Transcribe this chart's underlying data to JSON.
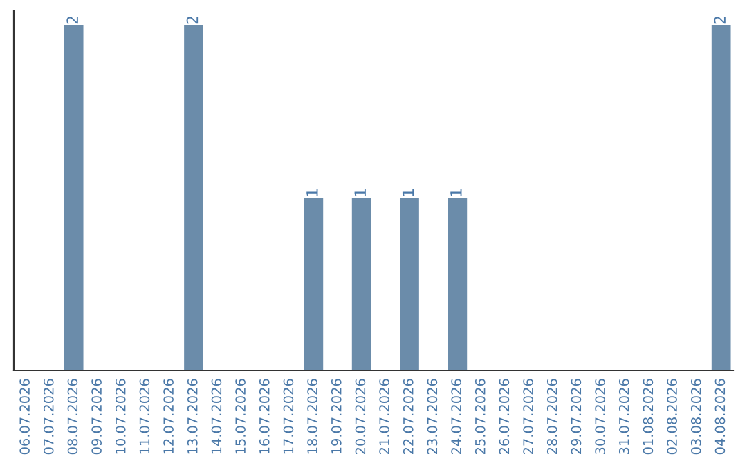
{
  "chart_data": {
    "type": "bar",
    "categories": [
      "06.07.2026",
      "07.07.2026",
      "08.07.2026",
      "09.07.2026",
      "10.07.2026",
      "11.07.2026",
      "12.07.2026",
      "13.07.2026",
      "14.07.2026",
      "15.07.2026",
      "16.07.2026",
      "17.07.2026",
      "18.07.2026",
      "19.07.2026",
      "20.07.2026",
      "21.07.2026",
      "22.07.2026",
      "23.07.2026",
      "24.07.2026",
      "25.07.2026",
      "26.07.2026",
      "27.07.2026",
      "28.07.2026",
      "29.07.2026",
      "30.07.2026",
      "31.07.2026",
      "01.08.2026",
      "02.08.2026",
      "03.08.2026",
      "04.08.2026"
    ],
    "values": [
      0,
      0,
      2,
      0,
      0,
      0,
      0,
      2,
      0,
      0,
      0,
      0,
      1,
      0,
      1,
      0,
      1,
      0,
      1,
      0,
      0,
      0,
      0,
      0,
      0,
      0,
      0,
      0,
      0,
      2
    ],
    "value_labels": [
      null,
      null,
      "2",
      null,
      null,
      null,
      null,
      "2",
      null,
      null,
      null,
      null,
      "1",
      null,
      "1",
      null,
      "1",
      null,
      "1",
      null,
      null,
      null,
      null,
      null,
      null,
      null,
      null,
      null,
      null,
      "2"
    ],
    "color": "#6b8caa",
    "grid": false,
    "legend": false
  }
}
